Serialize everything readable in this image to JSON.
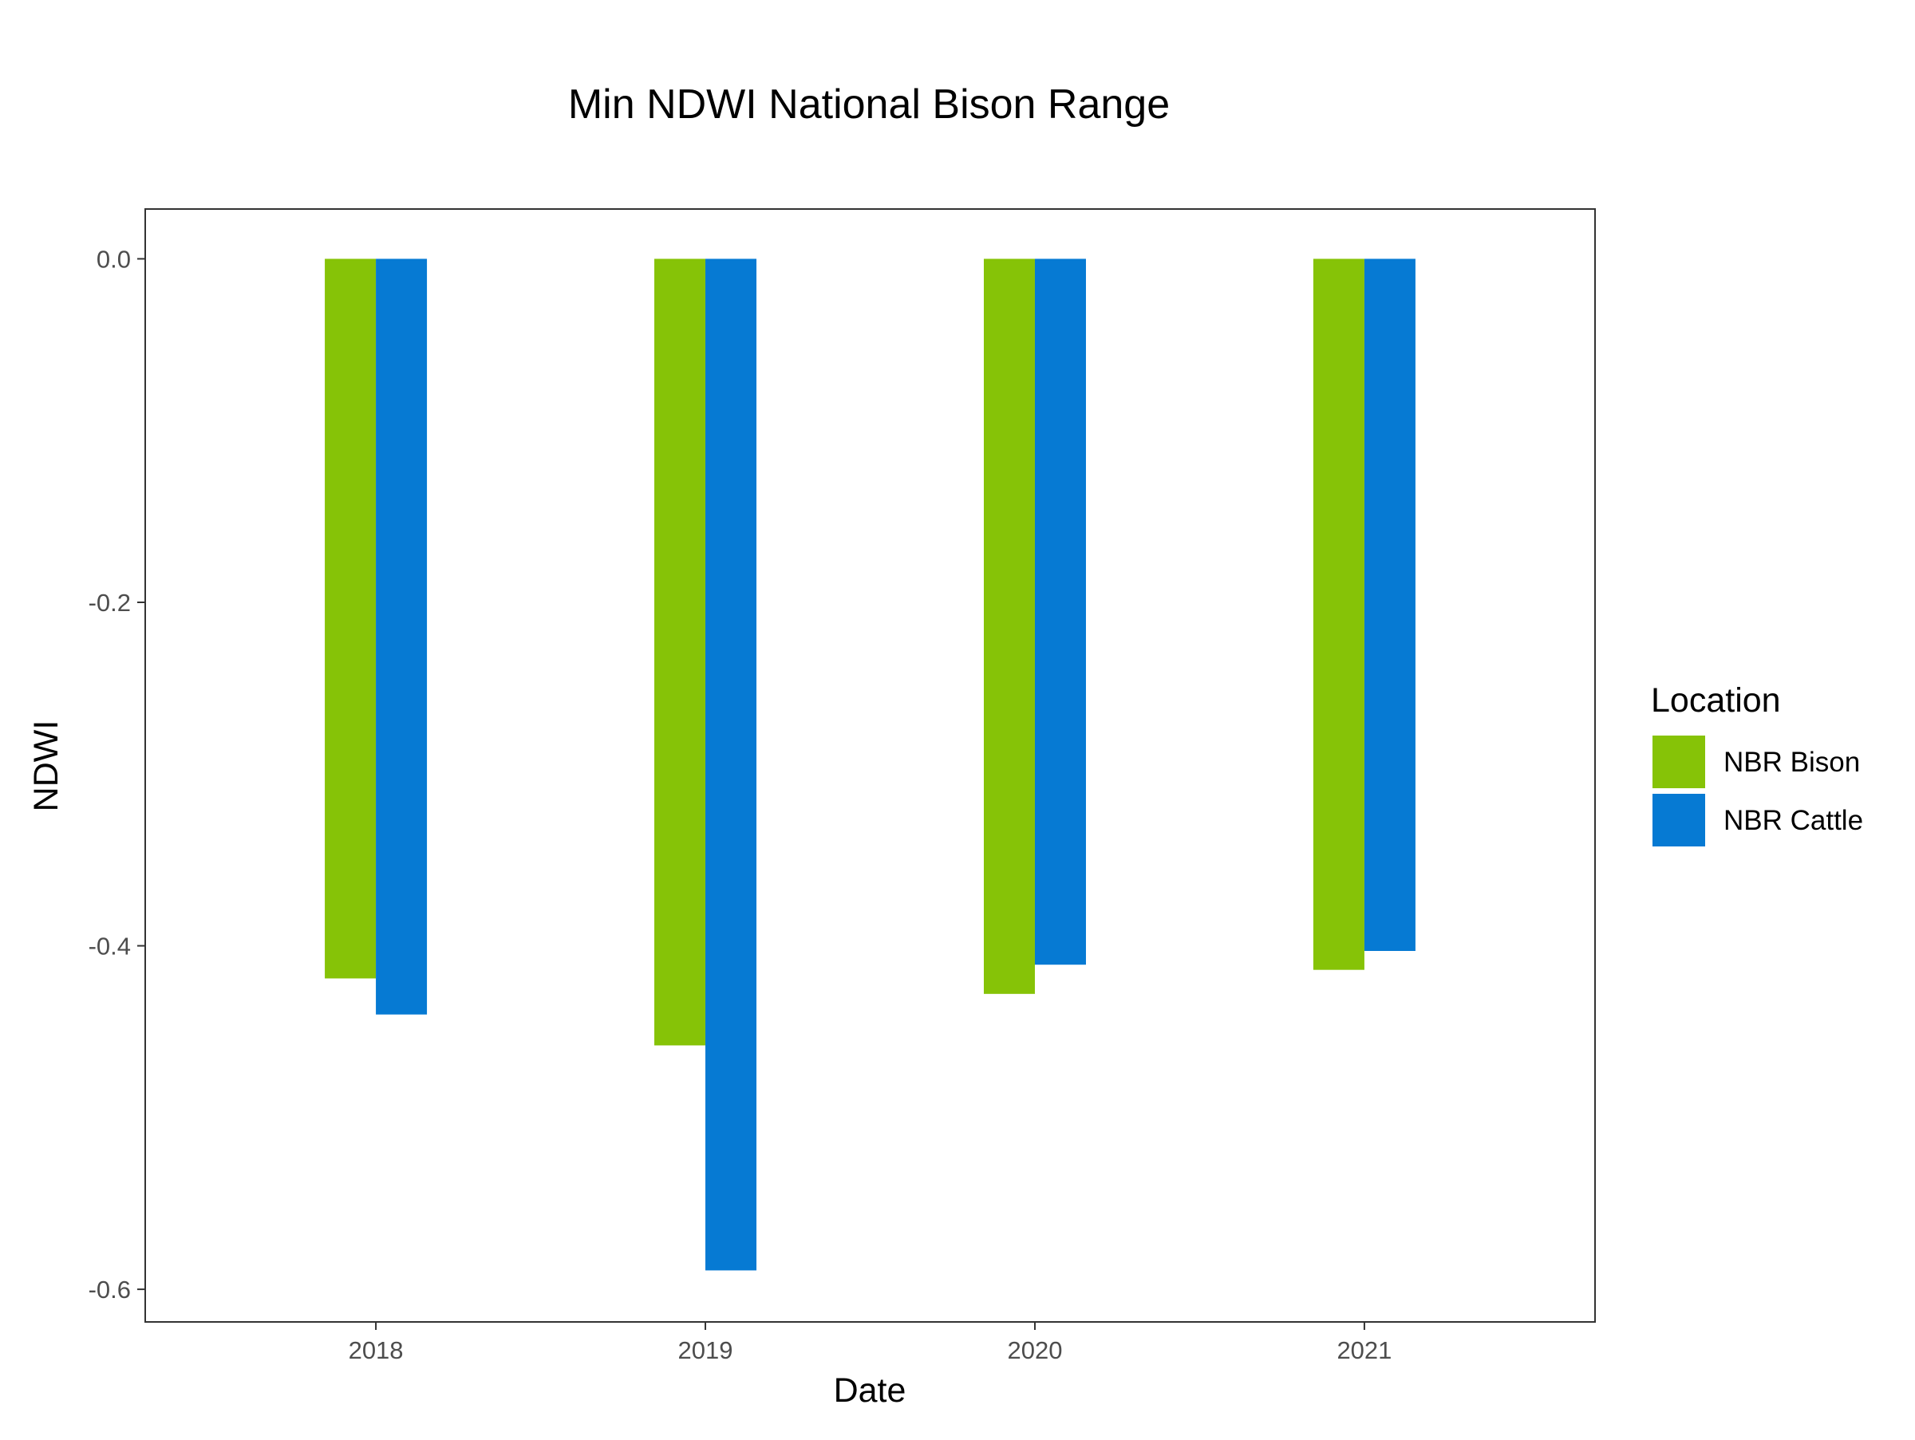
{
  "chart_data": {
    "type": "bar",
    "title": "Min NDWI National Bison Range",
    "xlabel": "Date",
    "ylabel": "NDWI",
    "categories": [
      "2018",
      "2019",
      "2020",
      "2021"
    ],
    "series": [
      {
        "name": "NBR Bison",
        "color": "#86C307",
        "values": [
          -0.419,
          -0.458,
          -0.428,
          -0.414
        ]
      },
      {
        "name": "NBR Cattle",
        "color": "#067AD3",
        "values": [
          -0.44,
          -0.589,
          -0.411,
          -0.403
        ]
      }
    ],
    "ylim": [
      -0.619,
      0.029
    ],
    "yticks": [
      0.0,
      -0.2,
      -0.4,
      -0.6
    ],
    "ytick_labels": [
      "0.0",
      "-0.2",
      "-0.4",
      "-0.6"
    ],
    "grid": false,
    "legend": {
      "title": "Location",
      "position": "right"
    }
  }
}
